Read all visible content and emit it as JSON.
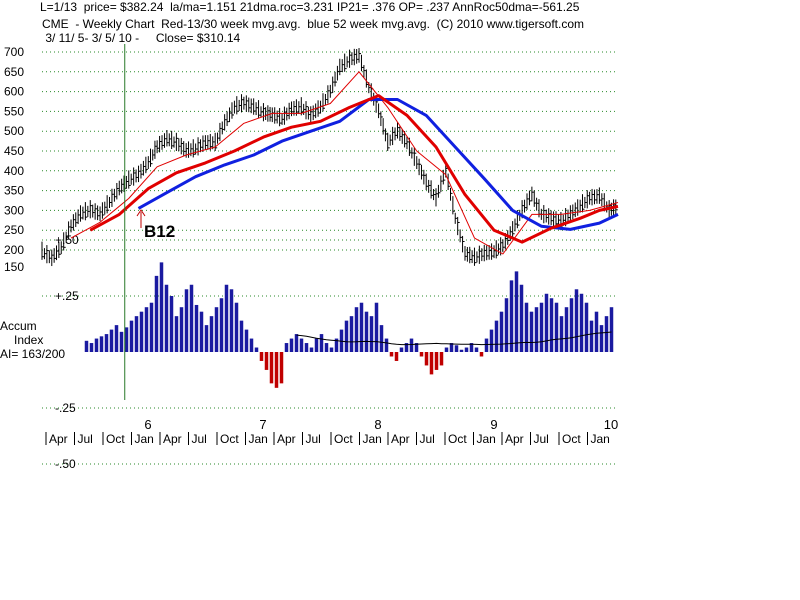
{
  "header": {
    "line1": "L=1/13  price= $382.24  la/ma=1.151 21dma.roc=3.231 IP21= .376 OP= .237 AnnRoc50dma=-561.25",
    "line2": "CME  - Weekly Chart  Red-13/30 week mvg.avg.  blue 52 week mvg.avg.  (C) 2010 www.tigersoft.com",
    "line3": " 3/ 11/ 5- 3/ 5/ 10 -     Close= $310.14"
  },
  "colors": {
    "price": "#000000",
    "ma13": "#e00000",
    "ma30": "#e00000",
    "ma52": "#1020e0",
    "accum_pos": "#1a1aa0",
    "accum_neg": "#c00000",
    "grid": "#2a8a2a",
    "signal": "#2a7a2a"
  },
  "chart_data": {
    "type": "line",
    "title": "CME - Weekly Chart",
    "y_ticks": [
      "700",
      "650",
      "600",
      "550",
      "500",
      "450",
      "400",
      "350",
      "300",
      "250",
      "200",
      "150"
    ],
    "x_year_labels": [
      "6",
      "7",
      "8",
      "9",
      "10"
    ],
    "x_month_labels": [
      "Apr",
      "Jul",
      "Oct",
      "Jan",
      "Apr",
      "Jul",
      "Oct",
      "Jan",
      "Apr",
      "Jul",
      "Oct",
      "Jan",
      "Apr",
      "Jul",
      "Oct",
      "Jan",
      "Apr",
      "Jul",
      "Oct",
      "Jan"
    ],
    "signal": {
      "label": "B12",
      "date": "2005-12"
    },
    "price_close": [
      [
        "2005-03",
        195
      ],
      [
        "2005-04",
        178
      ],
      [
        "2005-05",
        205
      ],
      [
        "2005-06",
        260
      ],
      [
        "2005-07",
        290
      ],
      [
        "2005-08",
        300
      ],
      [
        "2005-09",
        290
      ],
      [
        "2005-10",
        320
      ],
      [
        "2005-11",
        355
      ],
      [
        "2005-12",
        375
      ],
      [
        "2006-01",
        390
      ],
      [
        "2006-02",
        420
      ],
      [
        "2006-03",
        460
      ],
      [
        "2006-04",
        480
      ],
      [
        "2006-05",
        470
      ],
      [
        "2006-06",
        450
      ],
      [
        "2006-07",
        455
      ],
      [
        "2006-08",
        470
      ],
      [
        "2006-09",
        470
      ],
      [
        "2006-10",
        520
      ],
      [
        "2006-11",
        560
      ],
      [
        "2006-12",
        570
      ],
      [
        "2007-01",
        560
      ],
      [
        "2007-02",
        545
      ],
      [
        "2007-03",
        540
      ],
      [
        "2007-04",
        530
      ],
      [
        "2007-05",
        555
      ],
      [
        "2007-06",
        560
      ],
      [
        "2007-07",
        540
      ],
      [
        "2007-08",
        560
      ],
      [
        "2007-09",
        600
      ],
      [
        "2007-10",
        660
      ],
      [
        "2007-11",
        680
      ],
      [
        "2007-12",
        690
      ],
      [
        "2008-01",
        610
      ],
      [
        "2008-02",
        550
      ],
      [
        "2008-03",
        470
      ],
      [
        "2008-04",
        500
      ],
      [
        "2008-05",
        470
      ],
      [
        "2008-06",
        420
      ],
      [
        "2008-07",
        370
      ],
      [
        "2008-08",
        330
      ],
      [
        "2008-09",
        400
      ],
      [
        "2008-10",
        280
      ],
      [
        "2008-11",
        190
      ],
      [
        "2008-12",
        180
      ],
      [
        "2009-01",
        190
      ],
      [
        "2009-02",
        195
      ],
      [
        "2009-03",
        210
      ],
      [
        "2009-04",
        250
      ],
      [
        "2009-05",
        300
      ],
      [
        "2009-06",
        340
      ],
      [
        "2009-07",
        290
      ],
      [
        "2009-08",
        280
      ],
      [
        "2009-09",
        270
      ],
      [
        "2009-10",
        290
      ],
      [
        "2009-11",
        310
      ],
      [
        "2009-12",
        330
      ],
      [
        "2010-01",
        335
      ],
      [
        "2010-02",
        300
      ],
      [
        "2010-03",
        310
      ]
    ],
    "ma13": [
      [
        "2005-06",
        230
      ],
      [
        "2005-09",
        270
      ],
      [
        "2005-12",
        330
      ],
      [
        "2006-03",
        410
      ],
      [
        "2006-06",
        440
      ],
      [
        "2006-09",
        460
      ],
      [
        "2006-12",
        520
      ],
      [
        "2007-03",
        545
      ],
      [
        "2007-06",
        545
      ],
      [
        "2007-09",
        570
      ],
      [
        "2007-12",
        650
      ],
      [
        "2008-03",
        560
      ],
      [
        "2008-06",
        450
      ],
      [
        "2008-09",
        390
      ],
      [
        "2008-12",
        230
      ],
      [
        "2009-03",
        190
      ],
      [
        "2009-06",
        290
      ],
      [
        "2009-09",
        290
      ],
      [
        "2009-12",
        300
      ],
      [
        "2010-03",
        320
      ]
    ],
    "ma30": [
      [
        "2005-08",
        250
      ],
      [
        "2005-11",
        290
      ],
      [
        "2006-02",
        355
      ],
      [
        "2006-05",
        395
      ],
      [
        "2006-08",
        420
      ],
      [
        "2006-11",
        450
      ],
      [
        "2007-02",
        485
      ],
      [
        "2007-05",
        510
      ],
      [
        "2007-08",
        525
      ],
      [
        "2007-11",
        560
      ],
      [
        "2008-02",
        590
      ],
      [
        "2008-05",
        540
      ],
      [
        "2008-08",
        460
      ],
      [
        "2008-11",
        340
      ],
      [
        "2009-02",
        250
      ],
      [
        "2009-05",
        220
      ],
      [
        "2009-08",
        255
      ],
      [
        "2009-11",
        280
      ],
      [
        "2010-01",
        300
      ],
      [
        "2010-03",
        310
      ]
    ],
    "ma52": [
      [
        "2006-01",
        305
      ],
      [
        "2006-04",
        345
      ],
      [
        "2006-07",
        385
      ],
      [
        "2006-10",
        415
      ],
      [
        "2007-01",
        440
      ],
      [
        "2007-04",
        475
      ],
      [
        "2007-07",
        500
      ],
      [
        "2007-10",
        525
      ],
      [
        "2008-01",
        580
      ],
      [
        "2008-04",
        580
      ],
      [
        "2008-07",
        540
      ],
      [
        "2008-10",
        460
      ],
      [
        "2009-01",
        380
      ],
      [
        "2009-04",
        300
      ],
      [
        "2009-07",
        260
      ],
      [
        "2009-10",
        252
      ],
      [
        "2010-01",
        268
      ],
      [
        "2010-03",
        290
      ]
    ],
    "accum": {
      "title": "Accum",
      "subtitle": "Index",
      "ai_label": "AI= 163/200",
      "y_ticks": [
        "+.50",
        "+.25",
        "-.25",
        "-.50"
      ],
      "ylim": [
        -0.5,
        0.5
      ],
      "values": [
        0.05,
        0.04,
        0.06,
        0.07,
        0.08,
        0.1,
        0.12,
        0.09,
        0.11,
        0.14,
        0.16,
        0.18,
        0.2,
        0.22,
        0.34,
        0.4,
        0.3,
        0.25,
        0.16,
        0.2,
        0.28,
        0.3,
        0.21,
        0.18,
        0.12,
        0.16,
        0.2,
        0.24,
        0.3,
        0.28,
        0.22,
        0.14,
        0.1,
        0.06,
        0.02,
        -0.04,
        -0.08,
        -0.14,
        -0.16,
        -0.14,
        0.04,
        0.06,
        0.08,
        0.06,
        0.04,
        0.02,
        0.06,
        0.08,
        0.04,
        0.02,
        0.06,
        0.1,
        0.14,
        0.16,
        0.2,
        0.22,
        0.18,
        0.16,
        0.22,
        0.12,
        0.06,
        -0.02,
        -0.04,
        0.02,
        0.04,
        0.06,
        0.04,
        -0.02,
        -0.06,
        -0.1,
        -0.08,
        -0.06,
        0.02,
        0.04,
        0.03,
        0.01,
        0.02,
        0.04,
        0.02,
        -0.02,
        0.06,
        0.1,
        0.14,
        0.18,
        0.24,
        0.32,
        0.36,
        0.3,
        0.22,
        0.18,
        0.2,
        0.22,
        0.26,
        0.24,
        0.22,
        0.16,
        0.2,
        0.24,
        0.28,
        0.26,
        0.22,
        0.14,
        0.18,
        0.12,
        0.16,
        0.2
      ],
      "ma_start": 0.2
    }
  }
}
